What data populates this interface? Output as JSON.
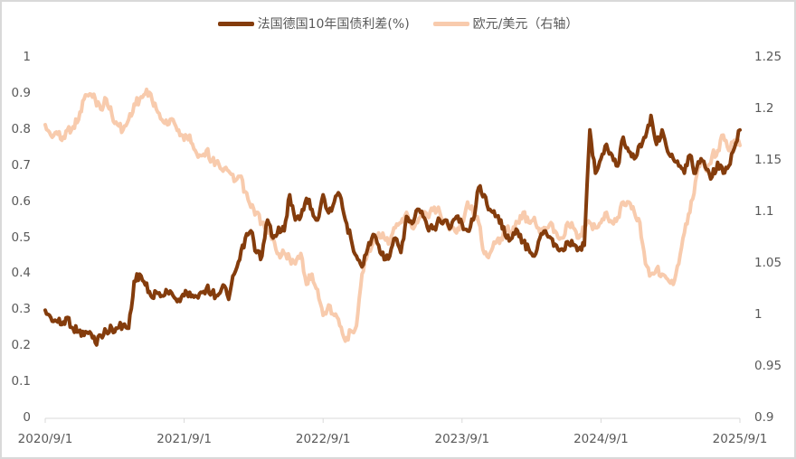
{
  "legend": {
    "series1_label": "法国德国10年国债利差(%)",
    "series2_label": "欧元/美元（右轴）"
  },
  "colors": {
    "series1": "#843c0c",
    "series2": "#f8cbad",
    "axis": "#d9d9d9",
    "text": "#595959"
  },
  "axes": {
    "left_ticks": [
      "0",
      "0.1",
      "0.2",
      "0.3",
      "0.4",
      "0.5",
      "0.6",
      "0.7",
      "0.8",
      "0.9",
      "1"
    ],
    "right_ticks": [
      "0.9",
      "0.95",
      "1",
      "1.05",
      "1.1",
      "1.15",
      "1.2",
      "1.25"
    ],
    "x_ticks": [
      "2020/9/1",
      "2021/9/1",
      "2022/9/1",
      "2023/9/1",
      "2024/9/1",
      "2025/9/1"
    ]
  },
  "chart_data": {
    "type": "line",
    "title": "",
    "xlabel": "",
    "ylabel": "法国德国10年国债利差(%)",
    "y2label": "欧元/美元",
    "legend_position": "top",
    "grid": false,
    "x_range": [
      "2020-09-01",
      "2025-09-01"
    ],
    "x_ticks": [
      "2020/9/1",
      "2021/9/1",
      "2022/9/1",
      "2023/9/1",
      "2024/9/1",
      "2025/9/1"
    ],
    "ylim": [
      0,
      1
    ],
    "y2lim": [
      0.9,
      1.25
    ],
    "x": [
      0.0,
      0.04,
      0.08,
      0.12,
      0.16,
      0.2,
      0.24,
      0.28,
      0.32,
      0.36,
      0.4,
      0.44,
      0.48,
      0.52,
      0.56,
      0.6,
      0.64,
      0.68,
      0.72,
      0.76,
      0.8,
      0.84,
      0.88,
      0.92,
      0.96,
      1.0,
      1.04,
      1.08,
      1.12,
      1.16,
      1.2,
      1.24,
      1.28,
      1.32,
      1.36,
      1.4,
      1.44,
      1.48,
      1.52,
      1.56,
      1.6,
      1.64,
      1.68,
      1.72,
      1.76,
      1.8,
      1.84,
      1.88,
      1.92,
      1.96,
      2.0,
      2.04,
      2.08,
      2.12,
      2.16,
      2.2,
      2.24,
      2.28,
      2.32,
      2.36,
      2.4,
      2.44,
      2.48,
      2.52,
      2.56,
      2.6,
      2.64,
      2.68,
      2.72,
      2.76,
      2.8,
      2.84,
      2.88,
      2.92,
      2.96,
      3.0,
      3.04,
      3.08,
      3.12,
      3.16,
      3.2,
      3.24,
      3.28,
      3.32,
      3.36,
      3.4,
      3.44,
      3.48,
      3.52,
      3.56,
      3.6,
      3.64,
      3.68,
      3.72,
      3.76,
      3.8,
      3.84,
      3.88,
      3.92,
      3.96,
      4.0,
      4.04,
      4.08,
      4.12,
      4.16,
      4.2,
      4.24,
      4.28,
      4.32,
      4.36,
      4.4,
      4.44,
      4.48,
      4.52,
      4.56,
      4.6,
      4.64,
      4.68,
      4.72,
      4.76,
      4.8,
      4.84,
      4.88,
      4.92,
      4.96,
      5.0
    ],
    "series": [
      {
        "name": "法国德国10年国债利差(%)",
        "axis": "left",
        "values": [
          0.3,
          0.28,
          0.27,
          0.26,
          0.28,
          0.25,
          0.24,
          0.23,
          0.24,
          0.21,
          0.23,
          0.24,
          0.25,
          0.25,
          0.26,
          0.25,
          0.38,
          0.4,
          0.37,
          0.34,
          0.35,
          0.34,
          0.35,
          0.34,
          0.33,
          0.34,
          0.35,
          0.34,
          0.35,
          0.36,
          0.35,
          0.34,
          0.37,
          0.33,
          0.4,
          0.44,
          0.5,
          0.52,
          0.46,
          0.45,
          0.55,
          0.5,
          0.53,
          0.52,
          0.62,
          0.55,
          0.56,
          0.61,
          0.58,
          0.55,
          0.62,
          0.57,
          0.6,
          0.62,
          0.55,
          0.5,
          0.45,
          0.42,
          0.47,
          0.51,
          0.48,
          0.44,
          0.45,
          0.5,
          0.46,
          0.56,
          0.54,
          0.58,
          0.56,
          0.52,
          0.53,
          0.55,
          0.55,
          0.53,
          0.56,
          0.54,
          0.52,
          0.55,
          0.64,
          0.62,
          0.58,
          0.56,
          0.55,
          0.5,
          0.5,
          0.52,
          0.49,
          0.47,
          0.45,
          0.5,
          0.52,
          0.5,
          0.48,
          0.47,
          0.49,
          0.48,
          0.47,
          0.48,
          0.8,
          0.68,
          0.72,
          0.76,
          0.73,
          0.7,
          0.78,
          0.74,
          0.72,
          0.76,
          0.78,
          0.84,
          0.76,
          0.8,
          0.74,
          0.72,
          0.7,
          0.68,
          0.73,
          0.68,
          0.72,
          0.69,
          0.67,
          0.71,
          0.68,
          0.7,
          0.75,
          0.8
        ]
      },
      {
        "name": "欧元/美元（右轴）",
        "axis": "right",
        "values": [
          1.185,
          1.175,
          1.178,
          1.17,
          1.18,
          1.183,
          1.19,
          1.21,
          1.215,
          1.21,
          1.2,
          1.21,
          1.195,
          1.185,
          1.18,
          1.19,
          1.205,
          1.21,
          1.215,
          1.215,
          1.2,
          1.19,
          1.185,
          1.19,
          1.18,
          1.17,
          1.175,
          1.16,
          1.155,
          1.16,
          1.15,
          1.15,
          1.14,
          1.14,
          1.13,
          1.135,
          1.12,
          1.105,
          1.1,
          1.09,
          1.08,
          1.075,
          1.06,
          1.06,
          1.055,
          1.05,
          1.06,
          1.03,
          1.04,
          1.025,
          1.0,
          1.01,
          1.0,
          0.99,
          0.975,
          0.985,
          0.99,
          1.04,
          1.06,
          1.07,
          1.08,
          1.075,
          1.07,
          1.085,
          1.09,
          1.1,
          1.085,
          1.09,
          1.1,
          1.095,
          1.105,
          1.1,
          1.09,
          1.085,
          1.08,
          1.09,
          1.11,
          1.1,
          1.09,
          1.06,
          1.06,
          1.07,
          1.075,
          1.085,
          1.08,
          1.09,
          1.1,
          1.09,
          1.095,
          1.08,
          1.085,
          1.09,
          1.08,
          1.075,
          1.09,
          1.085,
          1.075,
          1.085,
          1.09,
          1.085,
          1.09,
          1.1,
          1.09,
          1.095,
          1.11,
          1.11,
          1.1,
          1.09,
          1.05,
          1.04,
          1.045,
          1.04,
          1.035,
          1.03,
          1.05,
          1.08,
          1.1,
          1.13,
          1.15,
          1.14,
          1.155,
          1.16,
          1.175,
          1.16,
          1.17,
          1.165
        ]
      }
    ]
  }
}
